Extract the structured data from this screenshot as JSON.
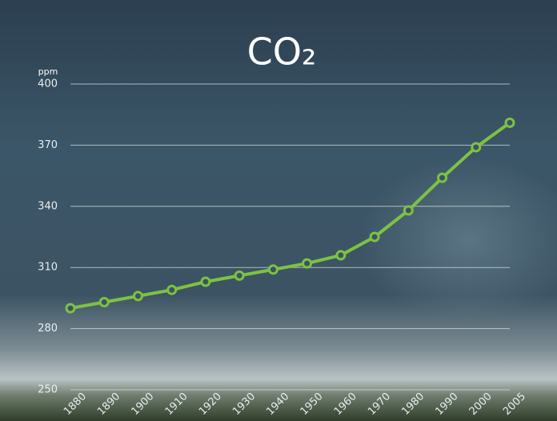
{
  "chart_data": {
    "type": "line",
    "title": "CO₂",
    "y_label": "ppm",
    "categories": [
      "1880",
      "1890",
      "1900",
      "1910",
      "1920",
      "1930",
      "1940",
      "1950",
      "1960",
      "1970",
      "1980",
      "1990",
      "2000",
      "2005"
    ],
    "series": [
      {
        "name": "CO₂",
        "color": "#7dc242",
        "values": [
          290,
          293,
          296,
          299,
          303,
          306,
          309,
          312,
          316,
          325,
          338,
          354,
          369,
          381
        ]
      }
    ],
    "ylim": [
      250,
      400
    ],
    "yticks": [
      250,
      280,
      310,
      340,
      370,
      400
    ],
    "grid": true
  }
}
